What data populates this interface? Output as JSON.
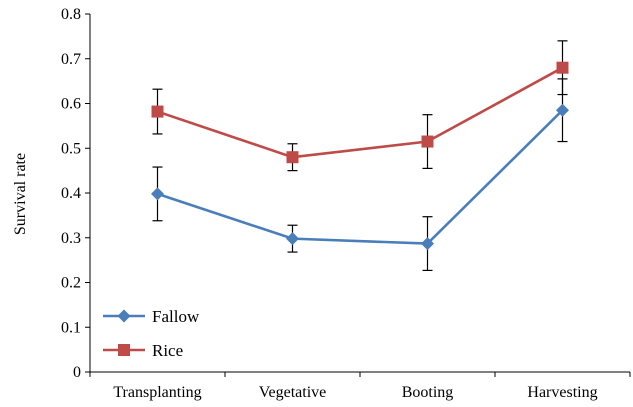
{
  "chart_data": {
    "type": "line",
    "title": "",
    "xlabel": "",
    "ylabel": "Survival rate",
    "categories": [
      "Transplanting",
      "Vegetative",
      "Booting",
      "Harvesting"
    ],
    "ylim": [
      0,
      0.8
    ],
    "yticks": [
      "0",
      "0.1",
      "0.2",
      "0.3",
      "0.4",
      "0.5",
      "0.6",
      "0.7",
      "0.8"
    ],
    "grid": false,
    "legend_position": "bottom-left",
    "series": [
      {
        "name": "Fallow",
        "color": "#4a7ebb",
        "marker": "diamond",
        "values": [
          0.398,
          0.298,
          0.287,
          0.585
        ],
        "error": [
          0.06,
          0.03,
          0.06,
          0.07
        ]
      },
      {
        "name": "Rice",
        "color": "#be4b48",
        "marker": "square",
        "values": [
          0.582,
          0.48,
          0.515,
          0.68
        ],
        "error": [
          0.05,
          0.03,
          0.06,
          0.06
        ]
      }
    ]
  }
}
